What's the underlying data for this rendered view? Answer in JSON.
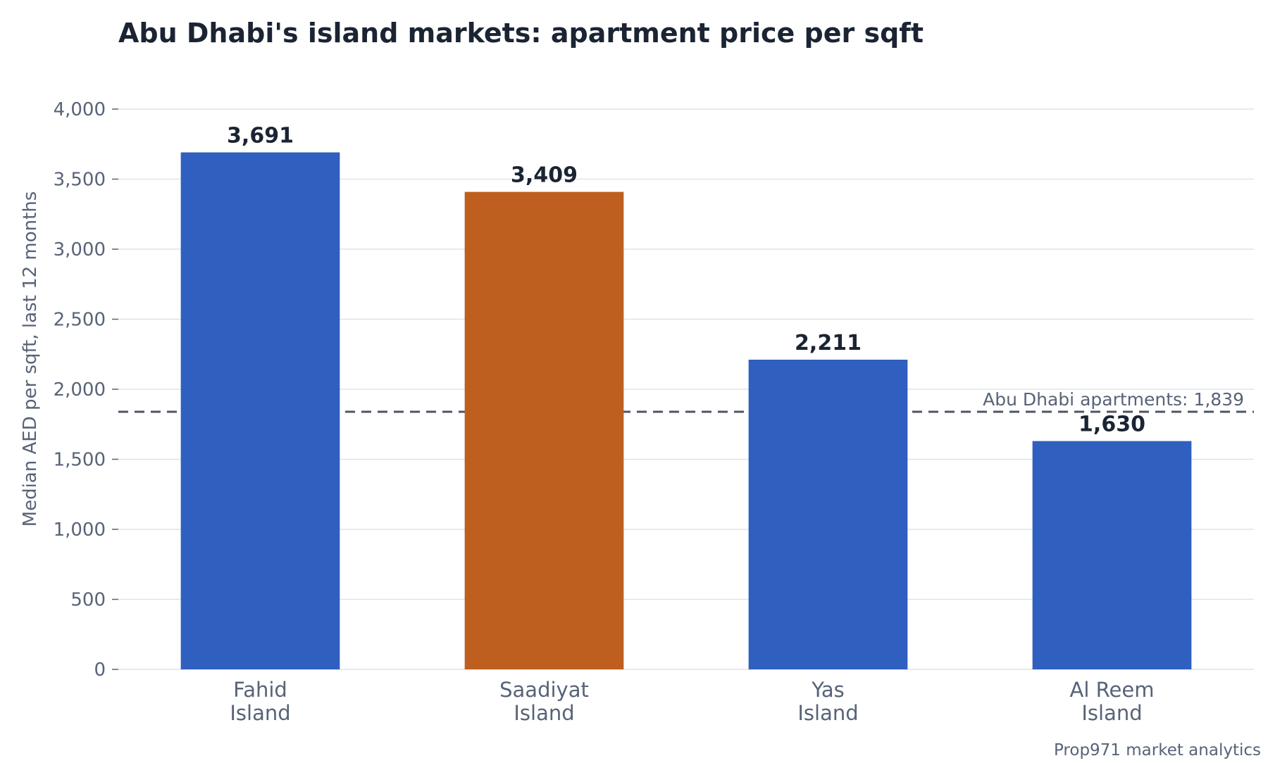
{
  "chart_data": {
    "type": "bar",
    "title": "Abu Dhabi's island markets: apartment price per sqft",
    "ylabel": "Median AED per sqft, last 12 months",
    "xlabel": "",
    "categories": [
      [
        "Fahid",
        "Island"
      ],
      [
        "Saadiyat",
        "Island"
      ],
      [
        "Yas",
        "Island"
      ],
      [
        "Al Reem",
        "Island"
      ]
    ],
    "values": [
      3691,
      3409,
      2211,
      1630
    ],
    "value_labels": [
      "3,691",
      "3,409",
      "2,211",
      "1,630"
    ],
    "bar_colors": [
      "#2f5fbf",
      "#bf5f1f",
      "#2f5fbf",
      "#2f5fbf"
    ],
    "ylim": [
      0,
      4000
    ],
    "yticks": [
      0,
      500,
      1000,
      1500,
      2000,
      2500,
      3000,
      3500,
      4000
    ],
    "ytick_labels": [
      "0",
      "500",
      "1,000",
      "1,500",
      "2,000",
      "2,500",
      "3,000",
      "3,500",
      "4,000"
    ],
    "grid": true,
    "reference_line": {
      "value": 1839,
      "label": "Abu Dhabi apartments: 1,839",
      "color": "#4c5565"
    },
    "source": "Prop971 market analytics"
  }
}
